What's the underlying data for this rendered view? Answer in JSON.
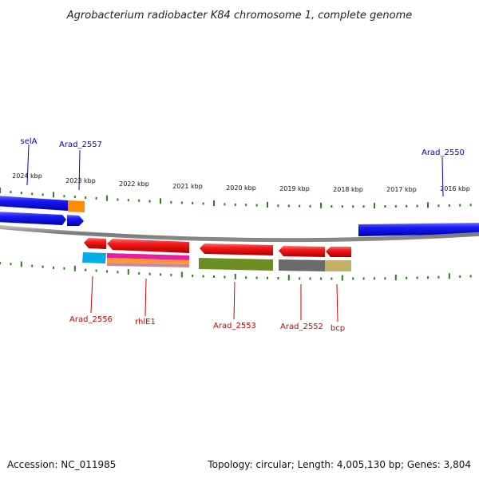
{
  "title": "Agrobacterium radiobacter K84 chromosome 1, complete genome",
  "footer": {
    "accession": "Accession: NC_011985",
    "topology": "Topology: circular; Length: 4,005,130 bp; Genes: 3,804"
  },
  "colors": {
    "background": "#ffffff",
    "forward_label": "#0000cc",
    "reverse_label": "#cc0000",
    "tick": "#2e7d1e",
    "backbone": "#808080",
    "forward_gene": "#1010ee",
    "reverse_gene": "#ee1010"
  },
  "scale_labels": [
    "2024 kbp",
    "2023 kbp",
    "2022 kbp",
    "2021 kbp",
    "2020 kbp",
    "2019 kbp",
    "2018 kbp",
    "2017 kbp",
    "2016 kbp"
  ],
  "genes_forward": [
    {
      "label": "selA"
    },
    {
      "label": "Arad_2557"
    },
    {
      "label": "Arad_2550"
    }
  ],
  "genes_reverse": [
    {
      "label": "Arad_2556"
    },
    {
      "label": "rhlE1"
    },
    {
      "label": "Arad_2553"
    },
    {
      "label": "Arad_2552"
    },
    {
      "label": "bcp"
    }
  ],
  "category_colors": [
    "#ff8c00",
    "#00aee8",
    "#e61fa0",
    "#ff9933",
    "#6b8e23",
    "#6a6a6a",
    "#c2b06b"
  ]
}
